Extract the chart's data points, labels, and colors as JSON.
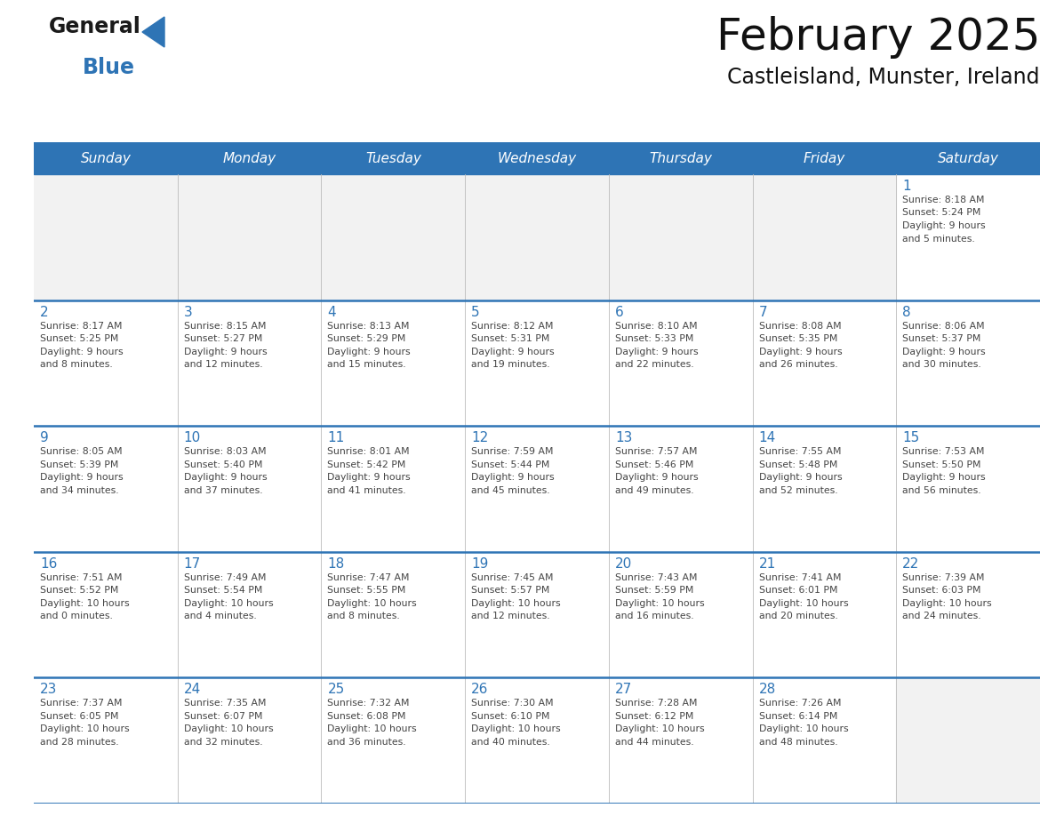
{
  "title": "February 2025",
  "subtitle": "Castleisland, Munster, Ireland",
  "header_bg": "#2E74B5",
  "header_text_color": "#FFFFFF",
  "day_headers": [
    "Sunday",
    "Monday",
    "Tuesday",
    "Wednesday",
    "Thursday",
    "Friday",
    "Saturday"
  ],
  "week_separator_color": "#2E74B5",
  "cell_bg_gray": "#F2F2F2",
  "cell_bg_white": "#FFFFFF",
  "text_color": "#444444",
  "day_num_color": "#2E74B5",
  "days": [
    {
      "day": 1,
      "col": 6,
      "row": 0,
      "sunrise": "8:18 AM",
      "sunset": "5:24 PM",
      "daylight": "9 hours and 5 minutes"
    },
    {
      "day": 2,
      "col": 0,
      "row": 1,
      "sunrise": "8:17 AM",
      "sunset": "5:25 PM",
      "daylight": "9 hours and 8 minutes"
    },
    {
      "day": 3,
      "col": 1,
      "row": 1,
      "sunrise": "8:15 AM",
      "sunset": "5:27 PM",
      "daylight": "9 hours and 12 minutes"
    },
    {
      "day": 4,
      "col": 2,
      "row": 1,
      "sunrise": "8:13 AM",
      "sunset": "5:29 PM",
      "daylight": "9 hours and 15 minutes"
    },
    {
      "day": 5,
      "col": 3,
      "row": 1,
      "sunrise": "8:12 AM",
      "sunset": "5:31 PM",
      "daylight": "9 hours and 19 minutes"
    },
    {
      "day": 6,
      "col": 4,
      "row": 1,
      "sunrise": "8:10 AM",
      "sunset": "5:33 PM",
      "daylight": "9 hours and 22 minutes"
    },
    {
      "day": 7,
      "col": 5,
      "row": 1,
      "sunrise": "8:08 AM",
      "sunset": "5:35 PM",
      "daylight": "9 hours and 26 minutes"
    },
    {
      "day": 8,
      "col": 6,
      "row": 1,
      "sunrise": "8:06 AM",
      "sunset": "5:37 PM",
      "daylight": "9 hours and 30 minutes"
    },
    {
      "day": 9,
      "col": 0,
      "row": 2,
      "sunrise": "8:05 AM",
      "sunset": "5:39 PM",
      "daylight": "9 hours and 34 minutes"
    },
    {
      "day": 10,
      "col": 1,
      "row": 2,
      "sunrise": "8:03 AM",
      "sunset": "5:40 PM",
      "daylight": "9 hours and 37 minutes"
    },
    {
      "day": 11,
      "col": 2,
      "row": 2,
      "sunrise": "8:01 AM",
      "sunset": "5:42 PM",
      "daylight": "9 hours and 41 minutes"
    },
    {
      "day": 12,
      "col": 3,
      "row": 2,
      "sunrise": "7:59 AM",
      "sunset": "5:44 PM",
      "daylight": "9 hours and 45 minutes"
    },
    {
      "day": 13,
      "col": 4,
      "row": 2,
      "sunrise": "7:57 AM",
      "sunset": "5:46 PM",
      "daylight": "9 hours and 49 minutes"
    },
    {
      "day": 14,
      "col": 5,
      "row": 2,
      "sunrise": "7:55 AM",
      "sunset": "5:48 PM",
      "daylight": "9 hours and 52 minutes"
    },
    {
      "day": 15,
      "col": 6,
      "row": 2,
      "sunrise": "7:53 AM",
      "sunset": "5:50 PM",
      "daylight": "9 hours and 56 minutes"
    },
    {
      "day": 16,
      "col": 0,
      "row": 3,
      "sunrise": "7:51 AM",
      "sunset": "5:52 PM",
      "daylight": "10 hours and 0 minutes"
    },
    {
      "day": 17,
      "col": 1,
      "row": 3,
      "sunrise": "7:49 AM",
      "sunset": "5:54 PM",
      "daylight": "10 hours and 4 minutes"
    },
    {
      "day": 18,
      "col": 2,
      "row": 3,
      "sunrise": "7:47 AM",
      "sunset": "5:55 PM",
      "daylight": "10 hours and 8 minutes"
    },
    {
      "day": 19,
      "col": 3,
      "row": 3,
      "sunrise": "7:45 AM",
      "sunset": "5:57 PM",
      "daylight": "10 hours and 12 minutes"
    },
    {
      "day": 20,
      "col": 4,
      "row": 3,
      "sunrise": "7:43 AM",
      "sunset": "5:59 PM",
      "daylight": "10 hours and 16 minutes"
    },
    {
      "day": 21,
      "col": 5,
      "row": 3,
      "sunrise": "7:41 AM",
      "sunset": "6:01 PM",
      "daylight": "10 hours and 20 minutes"
    },
    {
      "day": 22,
      "col": 6,
      "row": 3,
      "sunrise": "7:39 AM",
      "sunset": "6:03 PM",
      "daylight": "10 hours and 24 minutes"
    },
    {
      "day": 23,
      "col": 0,
      "row": 4,
      "sunrise": "7:37 AM",
      "sunset": "6:05 PM",
      "daylight": "10 hours and 28 minutes"
    },
    {
      "day": 24,
      "col": 1,
      "row": 4,
      "sunrise": "7:35 AM",
      "sunset": "6:07 PM",
      "daylight": "10 hours and 32 minutes"
    },
    {
      "day": 25,
      "col": 2,
      "row": 4,
      "sunrise": "7:32 AM",
      "sunset": "6:08 PM",
      "daylight": "10 hours and 36 minutes"
    },
    {
      "day": 26,
      "col": 3,
      "row": 4,
      "sunrise": "7:30 AM",
      "sunset": "6:10 PM",
      "daylight": "10 hours and 40 minutes"
    },
    {
      "day": 27,
      "col": 4,
      "row": 4,
      "sunrise": "7:28 AM",
      "sunset": "6:12 PM",
      "daylight": "10 hours and 44 minutes"
    },
    {
      "day": 28,
      "col": 5,
      "row": 4,
      "sunrise": "7:26 AM",
      "sunset": "6:14 PM",
      "daylight": "10 hours and 48 minutes"
    }
  ],
  "logo_color_black": "#1A1A1A",
  "logo_color_blue": "#2E74B5",
  "fig_width": 11.88,
  "fig_height": 9.18,
  "dpi": 100
}
